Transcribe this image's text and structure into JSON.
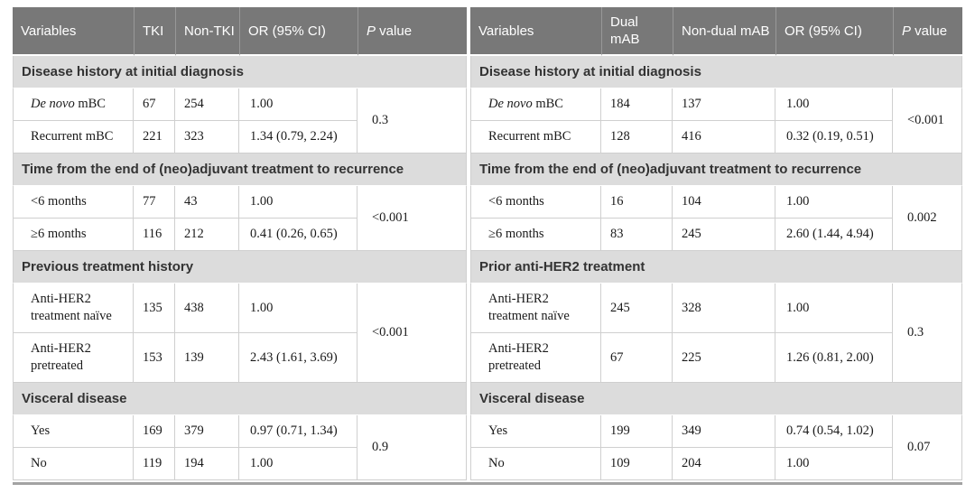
{
  "figure": {
    "description": "Two side-by-side univariable logistic regression tables",
    "colors": {
      "header_bg": "#787878",
      "header_text": "#ffffff",
      "section_band_bg": "#dcdcdc",
      "section_band_text": "#333333",
      "body_text": "#1a1a1a",
      "grid_line": "#cfcfcf",
      "bottom_rule": "#a3a3a3"
    },
    "tables": [
      {
        "id": "tki",
        "columns": [
          "Variables",
          "TKI",
          "Non-TKI",
          "OR (95% CI)",
          "P value"
        ],
        "sections": [
          {
            "title": "Disease history at initial diagnosis",
            "p_value": "0.3",
            "rows": [
              {
                "em": "De novo",
                "label": "mBC",
                "group1": "67",
                "group2": "254",
                "or": "1.00"
              },
              {
                "label": "Recurrent mBC",
                "group1": "221",
                "group2": "323",
                "or": "1.34 (0.79, 2.24)"
              }
            ]
          },
          {
            "title": "Time from the end of (neo)adjuvant treatment to recurrence",
            "p_value": "<0.001",
            "rows": [
              {
                "label": "<6 months",
                "group1": "77",
                "group2": "43",
                "or": "1.00"
              },
              {
                "label": "≥6 months",
                "group1": "116",
                "group2": "212",
                "or": "0.41 (0.26, 0.65)"
              }
            ]
          },
          {
            "title": "Previous treatment history",
            "p_value": "<0.001",
            "rows": [
              {
                "label": "Anti-HER2 treatment naïve",
                "group1": "135",
                "group2": "438",
                "or": "1.00"
              },
              {
                "label": "Anti-HER2 pretreated",
                "group1": "153",
                "group2": "139",
                "or": "2.43 (1.61, 3.69)"
              }
            ]
          },
          {
            "title": "Visceral disease",
            "p_value": "0.9",
            "rows": [
              {
                "label": "Yes",
                "group1": "169",
                "group2": "379",
                "or": "0.97 (0.71, 1.34)"
              },
              {
                "label": "No",
                "group1": "119",
                "group2": "194",
                "or": "1.00"
              }
            ]
          }
        ]
      },
      {
        "id": "mab",
        "columns": [
          "Variables",
          "Dual mAB",
          "Non-dual mAB",
          "OR (95% CI)",
          "P value"
        ],
        "sections": [
          {
            "title": "Disease history at initial diagnosis",
            "p_value": "<0.001",
            "rows": [
              {
                "em": "De novo",
                "label": "mBC",
                "group1": "184",
                "group2": "137",
                "or": "1.00"
              },
              {
                "label": "Recurrent mBC",
                "group1": "128",
                "group2": "416",
                "or": "0.32 (0.19, 0.51)"
              }
            ]
          },
          {
            "title": "Time from the end of (neo)adjuvant treatment to recurrence",
            "p_value": "0.002",
            "rows": [
              {
                "label": "<6 months",
                "group1": "16",
                "group2": "104",
                "or": "1.00"
              },
              {
                "label": "≥6 months",
                "group1": "83",
                "group2": "245",
                "or": "2.60 (1.44, 4.94)"
              }
            ]
          },
          {
            "title": "Prior anti-HER2 treatment",
            "p_value": "0.3",
            "rows": [
              {
                "label": "Anti-HER2 treatment naïve",
                "group1": "245",
                "group2": "328",
                "or": "1.00"
              },
              {
                "label": "Anti-HER2 pretreated",
                "group1": "67",
                "group2": "225",
                "or": "1.26 (0.81, 2.00)"
              }
            ]
          },
          {
            "title": "Visceral disease",
            "p_value": "0.07",
            "rows": [
              {
                "label": "Yes",
                "group1": "199",
                "group2": "349",
                "or": "0.74 (0.54, 1.02)"
              },
              {
                "label": "No",
                "group1": "109",
                "group2": "204",
                "or": "1.00"
              }
            ]
          }
        ]
      }
    ]
  }
}
